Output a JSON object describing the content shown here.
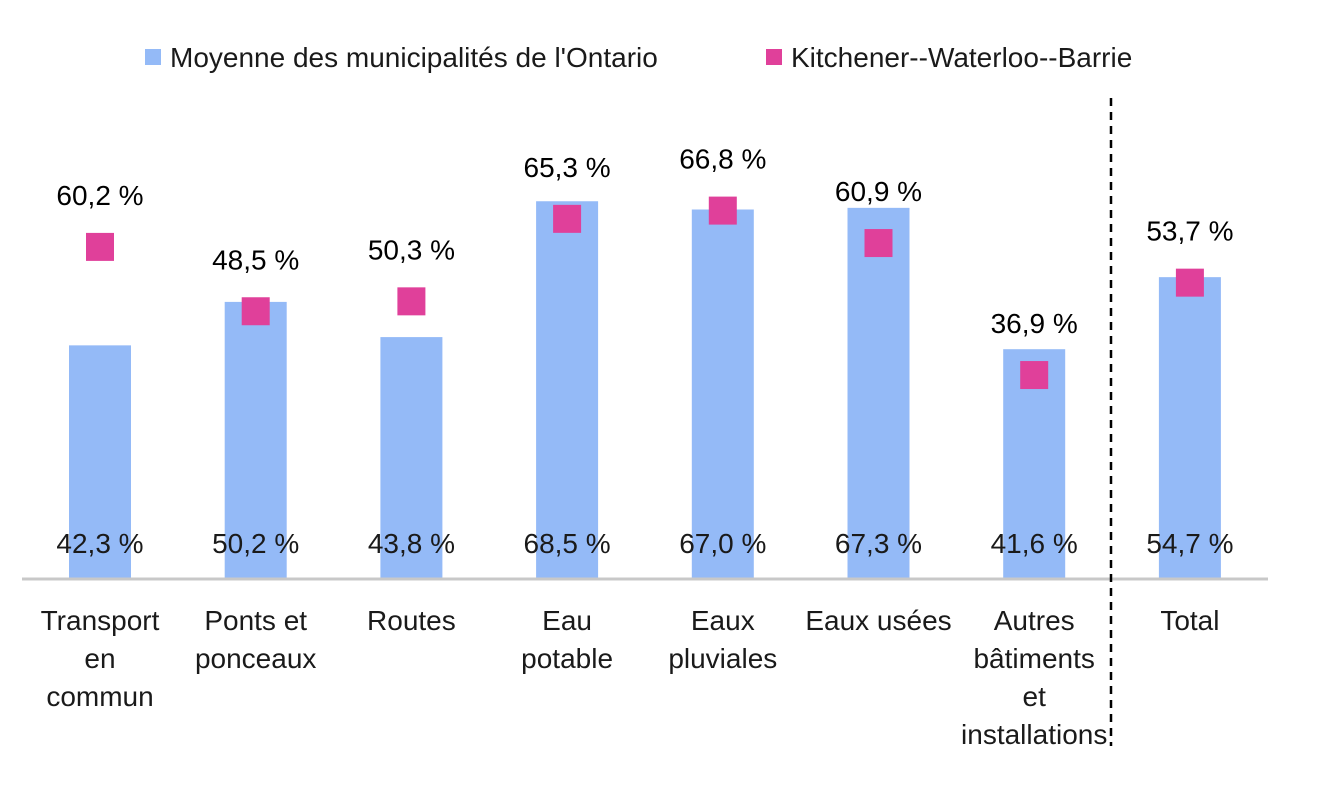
{
  "chart_data": {
    "type": "bar",
    "categories": [
      [
        "Transport",
        "en",
        "commun"
      ],
      [
        "Ponts et",
        "ponceaux"
      ],
      [
        "Routes"
      ],
      [
        "Eau",
        "potable"
      ],
      [
        "Eaux",
        "pluviales"
      ],
      [
        "Eaux usées"
      ],
      [
        "Autres",
        "bâtiments",
        "et",
        "installations"
      ],
      [
        "Total"
      ]
    ],
    "series": [
      {
        "name": "Moyenne des municipalités de l'Ontario",
        "mark": "bar",
        "color": "#94BAF7",
        "values": [
          42.3,
          50.2,
          43.8,
          68.5,
          67.0,
          67.3,
          41.6,
          54.7
        ],
        "labels": [
          "42,3 %",
          "50,2 %",
          "43,8 %",
          "68,5 %",
          "67,0 %",
          "67,3 %",
          "41,6 %",
          "54,7 %"
        ]
      },
      {
        "name": "Kitchener--Waterloo--Barrie",
        "mark": "square",
        "color": "#E0409A",
        "values": [
          60.2,
          48.5,
          50.3,
          65.3,
          66.8,
          60.9,
          36.9,
          53.7
        ],
        "labels": [
          "60,2 %",
          "48,5 %",
          "50,3 %",
          "65,3 %",
          "66,8 %",
          "60,9 %",
          "36,9 %",
          "53,7 %"
        ]
      }
    ],
    "ylim": [
      0,
      100
    ],
    "grid": false,
    "legend": "top",
    "separator_before": "Total"
  }
}
